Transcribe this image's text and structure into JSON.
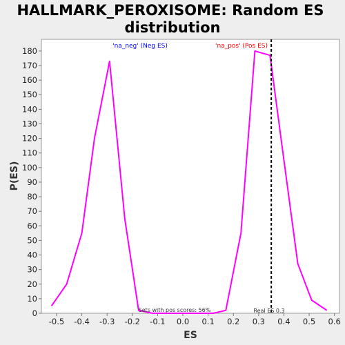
{
  "chart_data": {
    "type": "line",
    "title_lines": [
      "HALLMARK_PEROXISOME: Random ES",
      "distribution"
    ],
    "xlabel": "ES",
    "ylabel": "P(ES)",
    "xlim": [
      -0.56,
      0.62
    ],
    "ylim": [
      0,
      188
    ],
    "xticks": [
      -0.5,
      -0.4,
      -0.3,
      -0.2,
      -0.1,
      0.0,
      0.1,
      0.2,
      0.3,
      0.4,
      0.5,
      0.6
    ],
    "yticks": [
      0,
      10,
      20,
      30,
      40,
      50,
      60,
      70,
      80,
      90,
      100,
      110,
      120,
      130,
      140,
      150,
      160,
      170,
      180
    ],
    "grid": false,
    "series": [
      {
        "color": "#ff00ff",
        "points": [
          [
            -0.52,
            5
          ],
          [
            -0.46,
            20
          ],
          [
            -0.4,
            55
          ],
          [
            -0.35,
            120
          ],
          [
            -0.29,
            173
          ],
          [
            -0.23,
            65
          ],
          [
            -0.175,
            2
          ],
          [
            -0.12,
            0
          ],
          [
            0.0,
            0
          ],
          [
            0.12,
            0
          ],
          [
            0.17,
            2
          ],
          [
            0.23,
            55
          ],
          [
            0.285,
            180
          ],
          [
            0.345,
            177
          ],
          [
            0.4,
            105
          ],
          [
            0.455,
            34
          ],
          [
            0.51,
            9
          ],
          [
            0.57,
            2
          ]
        ]
      }
    ],
    "real_es": 0.35,
    "real_es_line_color": "#000000",
    "annotations": {
      "neg_label": "'na_neg' (Neg ES)",
      "neg_color": "#0000ff",
      "pos_label": "'na_pos' (Pos ES)",
      "pos_color": "#ff0000",
      "pos_scores": "Sets with pos scores: 56%",
      "real_es": "Real ES 0.3"
    }
  }
}
